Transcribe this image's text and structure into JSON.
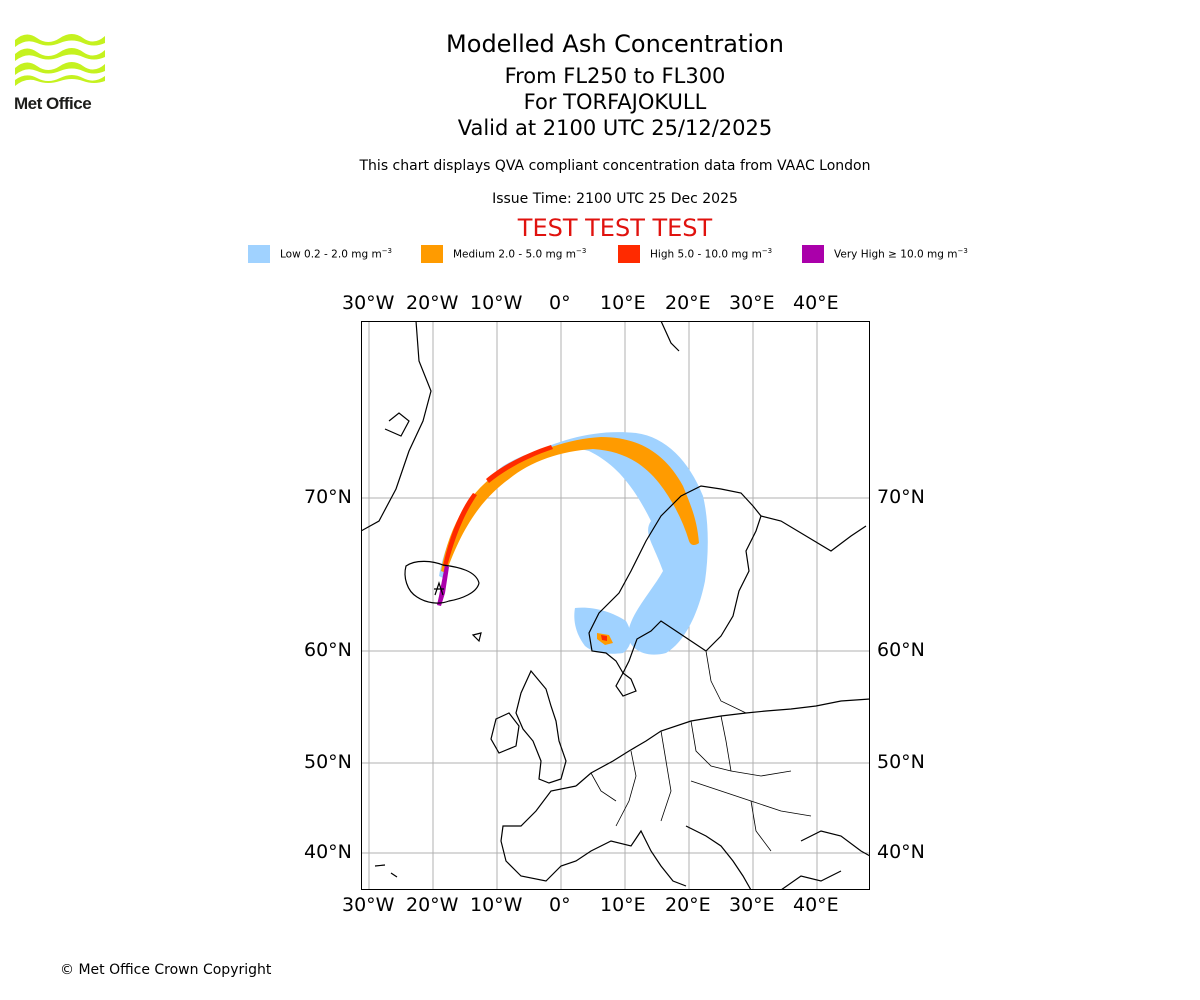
{
  "logo": {
    "text": "Met Office",
    "color": "#c5f21f"
  },
  "titles": {
    "main": "Modelled Ash Concentration",
    "levels": "From FL250 to FL300",
    "volcano": "For TORFAJOKULL",
    "valid": "Valid at 2100 UTC 25/12/2025",
    "note": "This chart displays QVA compliant concentration data from VAAC London",
    "issue": "Issue Time: 2100 UTC 25 Dec 2025",
    "test": "TEST TEST TEST"
  },
  "legend": [
    {
      "label": "Low 0.2 - 2.0 mg m",
      "color": "#a0d2ff"
    },
    {
      "label": "Medium 2.0 - 5.0 mg m",
      "color": "#ff9b00"
    },
    {
      "label": "High 5.0 - 10.0 mg m",
      "color": "#ff2a00"
    },
    {
      "label": "Very High ≥ 10.0 mg m",
      "color": "#aa00aa"
    }
  ],
  "legend_unit_exponent": "−3",
  "axes": {
    "longitudes": [
      "30°W",
      "20°W",
      "10°W",
      "0°",
      "10°E",
      "20°E",
      "30°E",
      "40°E"
    ],
    "latitudes": [
      "70°N",
      "60°N",
      "50°N",
      "40°N"
    ]
  },
  "copyright": "© Met Office Crown Copyright"
}
